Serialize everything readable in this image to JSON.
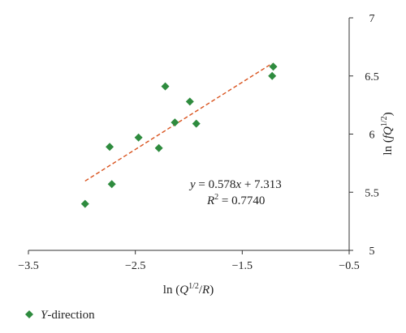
{
  "chart_data": {
    "type": "scatter",
    "title": "",
    "xlabel": "ln (Q^{1/2}/R)",
    "xlabel_parts": [
      "ln (",
      "Q",
      "1/2",
      "/",
      "R",
      ")"
    ],
    "ylabel": "ln (fQ^{1/2})",
    "ylabel_parts": [
      "ln (",
      "fQ",
      "1/2",
      ")"
    ],
    "xlim": [
      -3.5,
      -0.5
    ],
    "ylim": [
      5,
      7
    ],
    "xticks": [
      -3.5,
      -2.5,
      -1.5,
      -0.5
    ],
    "xtick_labels": [
      "−3.5",
      "−2.5",
      "−1.5",
      "−0.5"
    ],
    "yticks": [
      5,
      5.5,
      6,
      6.5,
      7
    ],
    "ytick_labels": [
      "5",
      "5.5",
      "6",
      "6.5",
      "7"
    ],
    "y_axis_position": "right",
    "grid": false,
    "series": [
      {
        "name": "Y-direction",
        "marker": "diamond",
        "color": "#2e8b3e",
        "points": [
          {
            "x": -2.97,
            "y": 5.4
          },
          {
            "x": -2.72,
            "y": 5.57
          },
          {
            "x": -2.74,
            "y": 5.89
          },
          {
            "x": -2.47,
            "y": 5.97
          },
          {
            "x": -2.28,
            "y": 5.88
          },
          {
            "x": -2.22,
            "y": 6.41
          },
          {
            "x": -2.13,
            "y": 6.1
          },
          {
            "x": -1.99,
            "y": 6.28
          },
          {
            "x": -1.93,
            "y": 6.09
          },
          {
            "x": -1.22,
            "y": 6.5
          },
          {
            "x": -1.21,
            "y": 6.58
          }
        ]
      }
    ],
    "trendline": {
      "slope": 0.578,
      "intercept": 7.313,
      "x_range": [
        -2.97,
        -1.22
      ],
      "color": "#d9531e",
      "style": "dashed"
    },
    "annotations": {
      "equation": {
        "parts": [
          "y",
          " = 0.578",
          "x",
          " + 7.313"
        ]
      },
      "r2": {
        "parts": [
          "R",
          "2",
          " = 0.7740"
        ]
      }
    },
    "legend": {
      "placement": "bottom-left",
      "label_parts": [
        "Y",
        "-direction"
      ]
    }
  }
}
